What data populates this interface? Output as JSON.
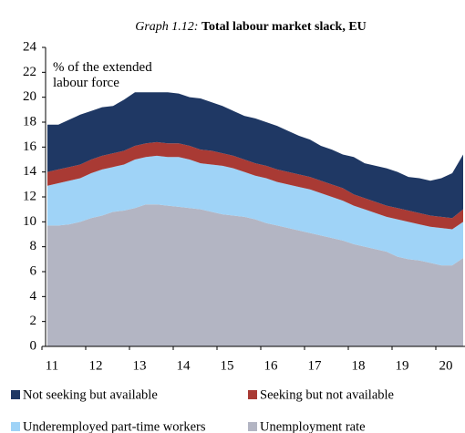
{
  "chart_data": {
    "type": "stacked_area",
    "title_prefix": "Graph 1.12:",
    "title": "Total labour market slack, EU",
    "annotation": "% of the extended labour force",
    "categories": [
      "11",
      null,
      null,
      null,
      "12",
      null,
      null,
      null,
      "13",
      null,
      null,
      null,
      "14",
      null,
      null,
      null,
      "15",
      null,
      null,
      null,
      "16",
      null,
      null,
      null,
      "17",
      null,
      null,
      null,
      "18",
      null,
      null,
      null,
      "19",
      null,
      null,
      null,
      "20",
      null,
      null
    ],
    "series": [
      {
        "name": "Not seeking but available",
        "color": "#1f3864",
        "values": [
          3.8,
          3.6,
          3.8,
          4.0,
          3.9,
          3.9,
          3.8,
          4.1,
          4.3,
          4.1,
          4.0,
          4.1,
          4.0,
          3.9,
          4.1,
          3.9,
          3.8,
          3.6,
          3.5,
          3.6,
          3.5,
          3.5,
          3.3,
          3.1,
          3.0,
          2.8,
          2.8,
          2.7,
          3.0,
          2.8,
          2.9,
          3.0,
          2.9,
          2.7,
          2.8,
          2.8,
          3.1,
          3.6,
          4.4
        ]
      },
      {
        "name": "Seeking but not available",
        "color": "#a93a34",
        "values": [
          1.1,
          1.1,
          1.1,
          1.1,
          1.1,
          1.1,
          1.1,
          1.1,
          1.1,
          1.1,
          1.1,
          1.1,
          1.1,
          1.1,
          1.1,
          1.1,
          1.0,
          1.0,
          1.0,
          1.0,
          1.0,
          1.0,
          1.0,
          1.0,
          1.0,
          1.0,
          1.0,
          1.0,
          0.9,
          0.9,
          0.9,
          0.9,
          0.9,
          0.9,
          0.9,
          0.9,
          0.9,
          0.9,
          1.0
        ]
      },
      {
        "name": "Underemployed part-time workers",
        "color": "#9fd3f7",
        "values": [
          3.2,
          3.4,
          3.5,
          3.5,
          3.6,
          3.7,
          3.6,
          3.7,
          3.9,
          3.8,
          3.9,
          3.9,
          4.0,
          3.9,
          3.7,
          3.8,
          3.9,
          3.8,
          3.6,
          3.5,
          3.6,
          3.5,
          3.5,
          3.5,
          3.5,
          3.4,
          3.3,
          3.2,
          3.1,
          3.0,
          2.9,
          2.8,
          3.0,
          3.0,
          2.9,
          2.9,
          3.0,
          2.9,
          2.9
        ]
      },
      {
        "name": "Unemployment rate",
        "color": "#b3b5c3",
        "values": [
          9.7,
          9.7,
          9.8,
          10.0,
          10.3,
          10.5,
          10.8,
          10.9,
          11.1,
          11.4,
          11.4,
          11.3,
          11.2,
          11.1,
          11.0,
          10.8,
          10.6,
          10.5,
          10.4,
          10.2,
          9.9,
          9.7,
          9.5,
          9.3,
          9.1,
          8.9,
          8.7,
          8.5,
          8.2,
          8.0,
          7.8,
          7.6,
          7.2,
          7.0,
          6.9,
          6.7,
          6.5,
          6.5,
          7.1
        ]
      }
    ],
    "ylim": [
      0,
      24
    ],
    "yticks": [
      0,
      2,
      4,
      6,
      8,
      10,
      12,
      14,
      16,
      18,
      20,
      22,
      24
    ]
  }
}
